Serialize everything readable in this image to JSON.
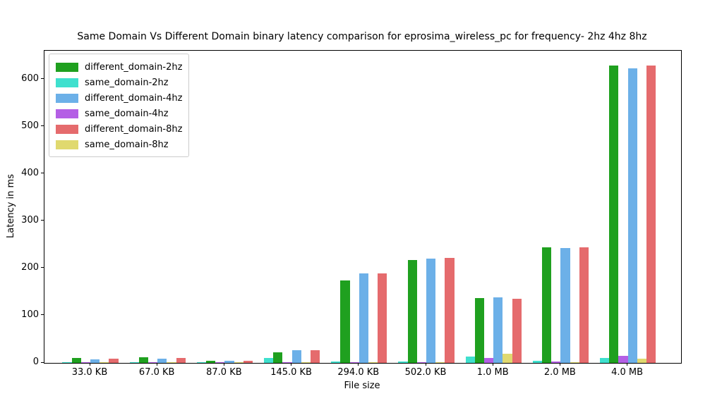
{
  "chart_data": {
    "type": "bar",
    "title": "Same Domain Vs Different Domain binary latency comparison for eprosima_wireless_pc for frequency- 2hz 4hz 8hz",
    "xlabel": "File size",
    "ylabel": "Latency in ms",
    "categories": [
      "33.0 KB",
      "67.0 KB",
      "87.0 KB",
      "145.0 KB",
      "294.0 KB",
      "502.0 KB",
      "1.0 MB",
      "2.0 MB",
      "4.0 MB"
    ],
    "series": [
      {
        "name": "different_domain-2hz",
        "color": "#1fa01f",
        "values": [
          10,
          12,
          4,
          23,
          175,
          218,
          137,
          245,
          630
        ]
      },
      {
        "name": "same_domain-2hz",
        "color": "#3fe0ce",
        "values": [
          1,
          1,
          1,
          10,
          3,
          3,
          14,
          5,
          10
        ]
      },
      {
        "name": "different_domain-4hz",
        "color": "#6cb0e8",
        "values": [
          8,
          9,
          5,
          27,
          190,
          221,
          139,
          243,
          623
        ]
      },
      {
        "name": "same_domain-4hz",
        "color": "#b45fe5",
        "values": [
          1,
          1,
          1,
          1,
          2,
          2,
          11,
          3,
          15
        ]
      },
      {
        "name": "different_domain-8hz",
        "color": "#e56b6d",
        "values": [
          9,
          10,
          5,
          27,
          189,
          223,
          136,
          244,
          630
        ]
      },
      {
        "name": "same_domain-8hz",
        "color": "#e0d96f",
        "values": [
          1,
          1,
          1,
          1,
          2,
          2,
          19,
          1,
          9
        ]
      }
    ],
    "bar_order": [
      "same_domain-2hz",
      "different_domain-2hz",
      "same_domain-4hz",
      "different_domain-4hz",
      "same_domain-8hz",
      "different_domain-8hz"
    ],
    "ylim": [
      0,
      661
    ],
    "yticks": [
      0,
      100,
      200,
      300,
      400,
      500,
      600
    ],
    "legend_position": "upper left",
    "grid": false,
    "background": "#ffffff"
  }
}
